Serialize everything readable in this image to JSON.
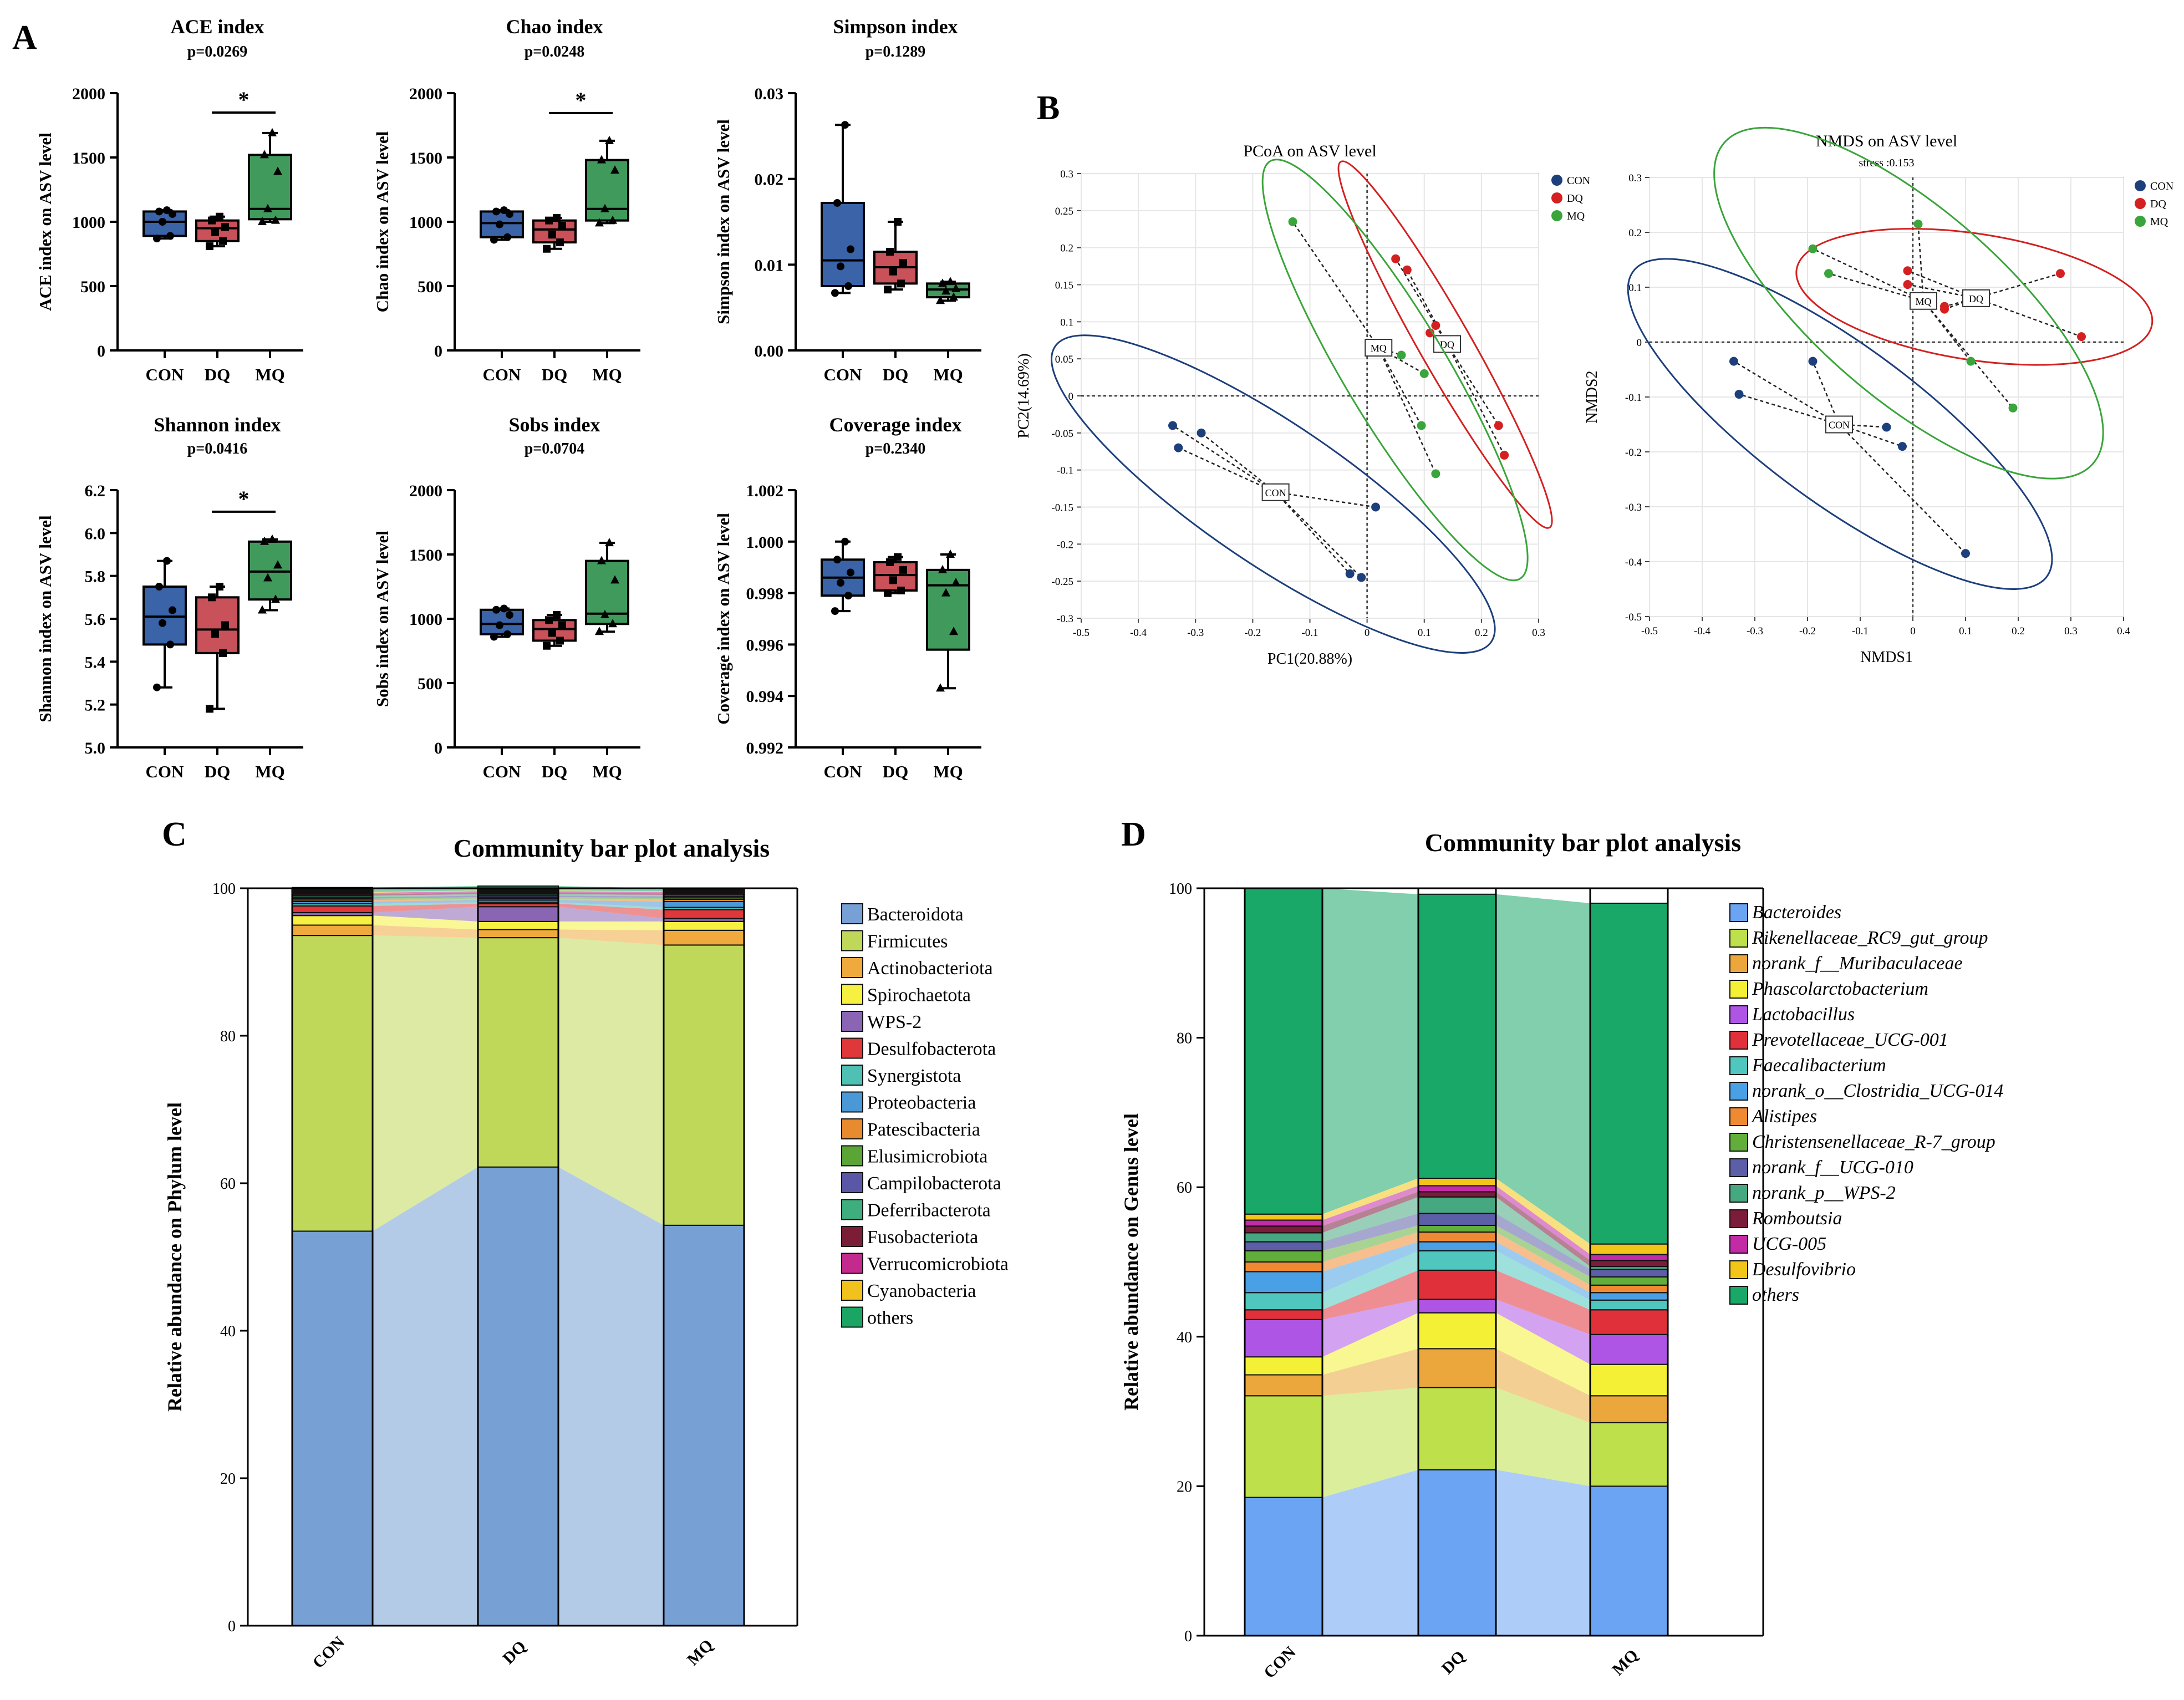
{
  "panels": {
    "A": "A",
    "B": "B",
    "C": "C",
    "D": "D"
  },
  "colors": {
    "CON": "#3a63a8",
    "DQ": "#c9515a",
    "MQ": "#3f9a5c",
    "CON_pt": "#1d3f7c",
    "DQ_pt": "#d42020",
    "MQ_pt": "#3aa53a"
  },
  "chart_data": [
    {
      "id": "ace",
      "type": "box",
      "title": "ACE index",
      "subtitle": "p=0.0269",
      "ylabel": "ACE index on ASV level",
      "ylim": [
        0,
        2000
      ],
      "yticks": [
        "0",
        "500",
        "1000",
        "1500",
        "2000"
      ],
      "categories": [
        "CON",
        "DQ",
        "MQ"
      ],
      "sig": [
        1,
        2
      ],
      "sig_label": "*",
      "boxes": [
        {
          "min": 870,
          "q1": 890,
          "median": 1000,
          "q3": 1080,
          "max": 1090,
          "points": [
            870,
            890,
            1000,
            1060,
            1080,
            1090
          ]
        },
        {
          "min": 810,
          "q1": 850,
          "median": 950,
          "q3": 1010,
          "max": 1040,
          "points": [
            810,
            850,
            920,
            960,
            1010,
            1040
          ]
        },
        {
          "min": 1000,
          "q1": 1020,
          "median": 1100,
          "q3": 1520,
          "max": 1690,
          "points": [
            1000,
            1010,
            1100,
            1390,
            1520,
            1690
          ]
        }
      ]
    },
    {
      "id": "chao",
      "type": "box",
      "title": "Chao index",
      "subtitle": "p=0.0248",
      "ylabel": "Chao index on ASV level",
      "ylim": [
        0,
        2000
      ],
      "yticks": [
        "0",
        "500",
        "1000",
        "1500",
        "2000"
      ],
      "categories": [
        "CON",
        "DQ",
        "MQ"
      ],
      "sig": [
        1,
        2
      ],
      "sig_label": "*",
      "boxes": [
        {
          "min": 860,
          "q1": 880,
          "median": 990,
          "q3": 1080,
          "max": 1090,
          "points": [
            860,
            880,
            980,
            1060,
            1080,
            1090
          ]
        },
        {
          "min": 790,
          "q1": 840,
          "median": 940,
          "q3": 1010,
          "max": 1030,
          "points": [
            790,
            840,
            900,
            970,
            1010,
            1030
          ]
        },
        {
          "min": 990,
          "q1": 1010,
          "median": 1100,
          "q3": 1480,
          "max": 1630,
          "points": [
            990,
            1010,
            1100,
            1400,
            1480,
            1630
          ]
        }
      ]
    },
    {
      "id": "simpson",
      "type": "box",
      "title": "Simpson index",
      "subtitle": "p=0.1289",
      "ylabel": "Simpson index on ASV level",
      "ylim": [
        0,
        0.03
      ],
      "yticks": [
        "0.00",
        "0.01",
        "0.02",
        "0.03"
      ],
      "categories": [
        "CON",
        "DQ",
        "MQ"
      ],
      "boxes": [
        {
          "min": 0.0067,
          "q1": 0.0075,
          "median": 0.0105,
          "q3": 0.0172,
          "max": 0.0263,
          "points": [
            0.0067,
            0.0075,
            0.0098,
            0.0118,
            0.0172,
            0.0263
          ]
        },
        {
          "min": 0.0071,
          "q1": 0.0078,
          "median": 0.0097,
          "q3": 0.0115,
          "max": 0.015,
          "points": [
            0.0071,
            0.0078,
            0.0092,
            0.0102,
            0.0115,
            0.015
          ]
        },
        {
          "min": 0.0058,
          "q1": 0.0062,
          "median": 0.0071,
          "q3": 0.0078,
          "max": 0.008,
          "points": [
            0.0058,
            0.0062,
            0.0069,
            0.0072,
            0.0078,
            0.008
          ]
        }
      ]
    },
    {
      "id": "shannon",
      "type": "box",
      "title": "Shannon index",
      "subtitle": "p=0.0416",
      "ylabel": "Shannon index on ASV level",
      "ylim": [
        5.0,
        6.2
      ],
      "yticks": [
        "5.0",
        "5.2",
        "5.4",
        "5.6",
        "5.8",
        "6.0",
        "6.2"
      ],
      "categories": [
        "CON",
        "DQ",
        "MQ"
      ],
      "sig": [
        1,
        2
      ],
      "sig_label": "*",
      "boxes": [
        {
          "min": 5.28,
          "q1": 5.48,
          "median": 5.61,
          "q3": 5.75,
          "max": 5.87,
          "points": [
            5.28,
            5.48,
            5.58,
            5.64,
            5.75,
            5.87
          ]
        },
        {
          "min": 5.18,
          "q1": 5.44,
          "median": 5.55,
          "q3": 5.7,
          "max": 5.75,
          "points": [
            5.18,
            5.44,
            5.53,
            5.57,
            5.7,
            5.75
          ]
        },
        {
          "min": 5.64,
          "q1": 5.69,
          "median": 5.82,
          "q3": 5.96,
          "max": 5.97,
          "points": [
            5.64,
            5.69,
            5.79,
            5.85,
            5.96,
            5.97
          ]
        }
      ]
    },
    {
      "id": "sobs",
      "type": "box",
      "title": "Sobs index",
      "subtitle": "p=0.0704",
      "ylabel": "Sobs index on ASV level",
      "ylim": [
        0,
        2000
      ],
      "yticks": [
        "0",
        "500",
        "1000",
        "1500",
        "2000"
      ],
      "categories": [
        "CON",
        "DQ",
        "MQ"
      ],
      "boxes": [
        {
          "min": 860,
          "q1": 880,
          "median": 960,
          "q3": 1070,
          "max": 1080,
          "points": [
            860,
            880,
            950,
            1030,
            1070,
            1080
          ]
        },
        {
          "min": 790,
          "q1": 830,
          "median": 920,
          "q3": 990,
          "max": 1030,
          "points": [
            790,
            830,
            890,
            950,
            990,
            1030
          ]
        },
        {
          "min": 900,
          "q1": 960,
          "median": 1040,
          "q3": 1450,
          "max": 1590,
          "points": [
            900,
            960,
            1030,
            1300,
            1450,
            1590
          ]
        }
      ]
    },
    {
      "id": "coverage",
      "type": "box",
      "title": "Coverage index",
      "subtitle": "p=0.2340",
      "ylabel": "Coverage index on ASV level",
      "ylim": [
        0.992,
        1.002
      ],
      "yticks": [
        "0.992",
        "0.994",
        "0.996",
        "0.998",
        "1.000",
        "1.002"
      ],
      "categories": [
        "CON",
        "DQ",
        "MQ"
      ],
      "boxes": [
        {
          "min": 0.9973,
          "q1": 0.9979,
          "median": 0.9986,
          "q3": 0.9993,
          "max": 1.0,
          "points": [
            0.9973,
            0.9979,
            0.9984,
            0.9988,
            0.9993,
            1.0
          ]
        },
        {
          "min": 0.998,
          "q1": 0.9981,
          "median": 0.9987,
          "q3": 0.9992,
          "max": 0.9994,
          "points": [
            0.998,
            0.9981,
            0.9985,
            0.9989,
            0.9992,
            0.9994
          ]
        },
        {
          "min": 0.9943,
          "q1": 0.9958,
          "median": 0.9983,
          "q3": 0.9989,
          "max": 0.9995,
          "points": [
            0.9943,
            0.9965,
            0.998,
            0.9984,
            0.9989,
            0.9995
          ]
        }
      ]
    },
    {
      "id": "pcoa",
      "type": "scatter",
      "title": "PCoA on ASV level",
      "xlabel": "PC1(20.88%)",
      "ylabel": "PC2(14.69%)",
      "xlim": [
        -0.5,
        0.3
      ],
      "ylim": [
        -0.3,
        0.3
      ],
      "xticks": [
        "-0.5",
        "-0.4",
        "-0.3",
        "-0.2",
        "-0.1",
        "0",
        "0.1",
        "0.2",
        "0.3"
      ],
      "yticks": [
        "-0.3",
        "-0.25",
        "-0.2",
        "-0.15",
        "-0.1",
        "-0.05",
        "0",
        "0.05",
        "0.1",
        "0.15",
        "0.2",
        "0.25",
        "0.3"
      ],
      "legend": [
        "CON",
        "DQ",
        "MQ"
      ],
      "groups": [
        {
          "name": "CON",
          "centroid": [
            -0.16,
            -0.13
          ],
          "points": [
            [
              -0.34,
              -0.04
            ],
            [
              -0.33,
              -0.07
            ],
            [
              -0.29,
              -0.05
            ],
            [
              -0.03,
              -0.24
            ],
            [
              -0.01,
              -0.245
            ],
            [
              0.015,
              -0.15
            ]
          ]
        },
        {
          "name": "DQ",
          "centroid": [
            0.14,
            0.07
          ],
          "points": [
            [
              0.05,
              0.185
            ],
            [
              0.07,
              0.17
            ],
            [
              0.11,
              0.085
            ],
            [
              0.12,
              0.095
            ],
            [
              0.23,
              -0.04
            ],
            [
              0.24,
              -0.08
            ]
          ]
        },
        {
          "name": "MQ",
          "centroid": [
            0.02,
            0.065
          ],
          "points": [
            [
              -0.13,
              0.235
            ],
            [
              0.06,
              0.055
            ],
            [
              0.1,
              0.03
            ],
            [
              0.095,
              -0.04
            ],
            [
              0.12,
              -0.105
            ]
          ]
        }
      ]
    },
    {
      "id": "nmds",
      "type": "scatter",
      "title": "NMDS on ASV level",
      "subtitle": "stress :0.153",
      "xlabel": "NMDS1",
      "ylabel": "NMDS2",
      "xlim": [
        -0.5,
        0.4
      ],
      "ylim": [
        -0.5,
        0.3
      ],
      "xticks": [
        "-0.5",
        "-0.4",
        "-0.3",
        "-0.2",
        "-0.1",
        "0",
        "0.1",
        "0.2",
        "0.3",
        "0.4"
      ],
      "yticks": [
        "-0.5",
        "-0.4",
        "-0.3",
        "-0.2",
        "-0.1",
        "0",
        "0.1",
        "0.2",
        "0.3"
      ],
      "legend": [
        "CON",
        "DQ",
        "MQ"
      ],
      "groups": [
        {
          "name": "CON",
          "centroid": [
            -0.14,
            -0.15
          ],
          "points": [
            [
              -0.34,
              -0.035
            ],
            [
              -0.33,
              -0.095
            ],
            [
              -0.19,
              -0.035
            ],
            [
              -0.05,
              -0.155
            ],
            [
              -0.02,
              -0.19
            ],
            [
              0.1,
              -0.385
            ]
          ]
        },
        {
          "name": "DQ",
          "centroid": [
            0.12,
            0.08
          ],
          "points": [
            [
              -0.01,
              0.13
            ],
            [
              -0.01,
              0.105
            ],
            [
              0.06,
              0.065
            ],
            [
              0.06,
              0.06
            ],
            [
              0.28,
              0.125
            ],
            [
              0.32,
              0.01
            ]
          ]
        },
        {
          "name": "MQ",
          "centroid": [
            0.02,
            0.075
          ],
          "points": [
            [
              -0.19,
              0.17
            ],
            [
              -0.16,
              0.125
            ],
            [
              0.01,
              0.215
            ],
            [
              0.11,
              -0.035
            ],
            [
              0.19,
              -0.12
            ]
          ]
        }
      ]
    },
    {
      "id": "phylum",
      "type": "stacked-bar",
      "title": "Community bar plot analysis",
      "ylabel": "Relative abundance on Phylum level",
      "ylim": [
        0,
        100
      ],
      "yticks": [
        "0",
        "20",
        "40",
        "60",
        "80",
        "100"
      ],
      "categories": [
        "CON",
        "DQ",
        "MQ"
      ],
      "series": [
        {
          "name": "Bacteroidota",
          "color": "#77a0d4",
          "values": [
            53.5,
            62.2,
            54.3
          ]
        },
        {
          "name": "Firmicutes",
          "color": "#bfd85a",
          "values": [
            40.1,
            31.1,
            38.0
          ]
        },
        {
          "name": "Actinobacteriota",
          "color": "#efa93c",
          "values": [
            1.4,
            1.1,
            2.0
          ]
        },
        {
          "name": "Spirochaetota",
          "color": "#f6f140",
          "values": [
            1.3,
            1.1,
            1.2
          ]
        },
        {
          "name": "WPS-2",
          "color": "#8a65b4",
          "values": [
            0.4,
            2.0,
            0.4
          ]
        },
        {
          "name": "Desulfobacterota",
          "color": "#e0373a",
          "values": [
            0.9,
            0.4,
            1.2
          ]
        },
        {
          "name": "Synergistota",
          "color": "#4fc0b4",
          "values": [
            0.3,
            0.2,
            0.3
          ]
        },
        {
          "name": "Proteobacteria",
          "color": "#4a98d6",
          "values": [
            0.3,
            0.3,
            0.8
          ]
        },
        {
          "name": "Patescibacteria",
          "color": "#e88a2e",
          "values": [
            0.2,
            0.2,
            0.3
          ]
        },
        {
          "name": "Elusimicrobiota",
          "color": "#5aa535",
          "values": [
            0.2,
            0.2,
            0.2
          ]
        },
        {
          "name": "Campilobacterota",
          "color": "#5a58a6",
          "values": [
            0.2,
            0.2,
            0.2
          ]
        },
        {
          "name": "Deferribacterota",
          "color": "#3fae7e",
          "values": [
            0.2,
            0.2,
            0.2
          ]
        },
        {
          "name": "Fusobacteriota",
          "color": "#7c1d38",
          "values": [
            0.2,
            0.2,
            0.2
          ]
        },
        {
          "name": "Verrucomicrobiota",
          "color": "#c42a8e",
          "values": [
            0.2,
            0.2,
            0.2
          ]
        },
        {
          "name": "Cyanobacteria",
          "color": "#f1c21d",
          "values": [
            0.1,
            0.1,
            0.1
          ]
        },
        {
          "name": "others",
          "color": "#1aa565",
          "values": [
            0.6,
            0.6,
            0.4
          ]
        }
      ],
      "top_cap_color": "#111111"
    },
    {
      "id": "genus",
      "type": "stacked-bar",
      "title": "Community bar plot analysis",
      "ylabel": "Relative abundance on Genus level",
      "ylim": [
        0,
        100
      ],
      "yticks": [
        "0",
        "20",
        "40",
        "60",
        "80",
        "100"
      ],
      "categories": [
        "CON",
        "DQ",
        "MQ"
      ],
      "series": [
        {
          "name": "Bacteroides",
          "color": "#6aa4f2",
          "values": [
            18.5,
            22.2,
            20.0
          ]
        },
        {
          "name": "Rikenellaceae_RC9_gut_group",
          "color": "#bee04a",
          "values": [
            13.6,
            11.0,
            8.5
          ]
        },
        {
          "name": "norank_f__Muribaculaceae",
          "color": "#eba73c",
          "values": [
            2.8,
            5.2,
            3.6
          ]
        },
        {
          "name": "Phascolarctobacterium",
          "color": "#f3f036",
          "values": [
            2.4,
            4.8,
            4.2
          ]
        },
        {
          "name": "Lactobacillus",
          "color": "#ae55e6",
          "values": [
            5.0,
            1.8,
            4.0
          ]
        },
        {
          "name": "Prevotellaceae_UCG-001",
          "color": "#e0313b",
          "values": [
            1.3,
            3.9,
            3.3
          ]
        },
        {
          "name": "Faecalibacterium",
          "color": "#4fc7be",
          "values": [
            2.3,
            2.6,
            1.3
          ]
        },
        {
          "name": "norank_o__Clostridia_UCG-014",
          "color": "#4aa0e4",
          "values": [
            2.8,
            1.2,
            1.0
          ]
        },
        {
          "name": "Alistipes",
          "color": "#f08a32",
          "values": [
            1.3,
            1.3,
            1.0
          ]
        },
        {
          "name": "Christensenellaceae_R-7_group",
          "color": "#62ae3a",
          "values": [
            1.5,
            0.9,
            1.1
          ]
        },
        {
          "name": "norank_f__UCG-010",
          "color": "#5c5ea8",
          "values": [
            1.2,
            1.6,
            1.0
          ]
        },
        {
          "name": "norank_p__WPS-2",
          "color": "#46a880",
          "values": [
            1.2,
            2.2,
            0.4
          ]
        },
        {
          "name": "Romboutsia",
          "color": "#7a1c3a",
          "values": [
            0.9,
            0.7,
            0.8
          ]
        },
        {
          "name": "UCG-005",
          "color": "#c22aa6",
          "values": [
            0.8,
            0.8,
            0.8
          ]
        },
        {
          "name": "Desulfovibrio",
          "color": "#f2c618",
          "values": [
            0.8,
            1.0,
            1.4
          ]
        },
        {
          "name": "others",
          "color": "#1aa868",
          "values": [
            43.6,
            38.0,
            45.6
          ]
        }
      ]
    }
  ]
}
